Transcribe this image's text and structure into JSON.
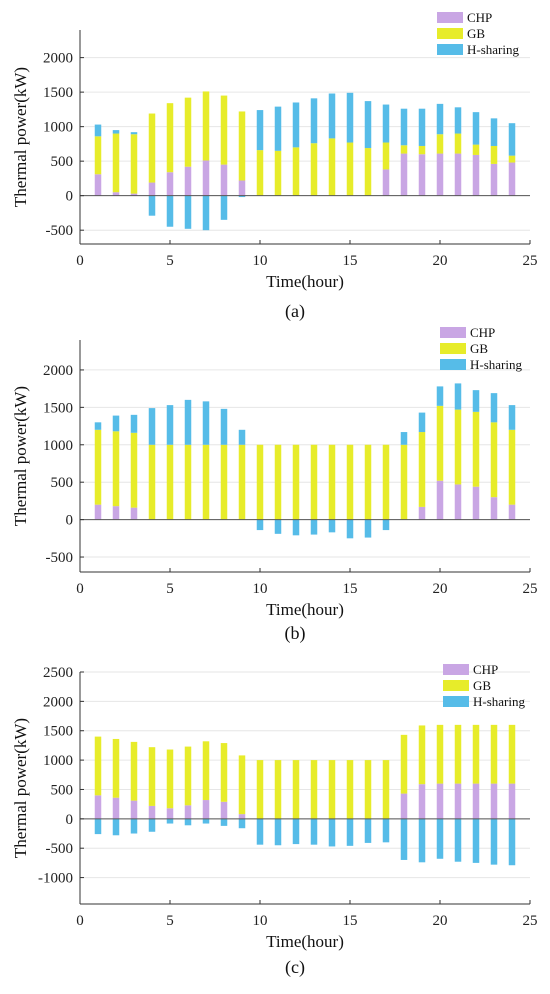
{
  "colors": {
    "CHP": "#C9A6E4",
    "GB": "#E7EC2A",
    "H-sharing": "#56BCE8",
    "grid": "#e6e6e6",
    "axis": "#333333"
  },
  "chart_data": [
    {
      "type": "bar",
      "caption": "(a)",
      "xlabel": "Time(hour)",
      "ylabel": "Thermal power(kW)",
      "xlim": [
        0,
        25
      ],
      "ylim": [
        -700,
        2400
      ],
      "xticks": [
        0,
        5,
        10,
        15,
        20,
        25
      ],
      "yticks": [
        -500,
        0,
        500,
        1000,
        1500,
        2000
      ],
      "grid": true,
      "legend": "top-right",
      "categories": [
        1,
        2,
        3,
        4,
        5,
        6,
        7,
        8,
        9,
        10,
        11,
        12,
        13,
        14,
        15,
        16,
        17,
        18,
        19,
        20,
        21,
        22,
        23,
        24
      ],
      "series": [
        {
          "name": "CHP",
          "values": [
            310,
            50,
            30,
            190,
            340,
            420,
            510,
            450,
            220,
            0,
            0,
            0,
            0,
            0,
            0,
            0,
            380,
            610,
            600,
            610,
            610,
            590,
            460,
            480
          ]
        },
        {
          "name": "GB",
          "values": [
            550,
            850,
            860,
            1000,
            1000,
            1000,
            1000,
            1000,
            1000,
            660,
            650,
            700,
            760,
            830,
            770,
            690,
            390,
            120,
            120,
            280,
            290,
            150,
            260,
            100
          ]
        },
        {
          "name": "H-sharing",
          "values": [
            170,
            50,
            30,
            -290,
            -450,
            -480,
            -500,
            -350,
            -20,
            580,
            640,
            650,
            650,
            650,
            720,
            680,
            550,
            530,
            540,
            440,
            380,
            470,
            400,
            470
          ]
        }
      ]
    },
    {
      "type": "bar",
      "caption": "(b)",
      "xlabel": "Time(hour)",
      "ylabel": "Thermal power(kW)",
      "xlim": [
        0,
        25
      ],
      "ylim": [
        -700,
        2400
      ],
      "xticks": [
        0,
        5,
        10,
        15,
        20,
        25
      ],
      "yticks": [
        -500,
        0,
        500,
        1000,
        1500,
        2000
      ],
      "grid": true,
      "legend": "top-right",
      "categories": [
        1,
        2,
        3,
        4,
        5,
        6,
        7,
        8,
        9,
        10,
        11,
        12,
        13,
        14,
        15,
        16,
        17,
        18,
        19,
        20,
        21,
        22,
        23,
        24
      ],
      "series": [
        {
          "name": "CHP",
          "values": [
            200,
            180,
            160,
            0,
            0,
            0,
            0,
            0,
            0,
            0,
            0,
            0,
            0,
            0,
            0,
            0,
            0,
            0,
            170,
            520,
            470,
            440,
            300,
            200
          ]
        },
        {
          "name": "GB",
          "values": [
            1000,
            1000,
            1000,
            1000,
            1000,
            1000,
            1000,
            1000,
            1000,
            1000,
            1000,
            1000,
            1000,
            1000,
            1000,
            1000,
            1000,
            1000,
            1000,
            1000,
            1000,
            1000,
            1000,
            1000
          ]
        },
        {
          "name": "H-sharing",
          "values": [
            100,
            210,
            240,
            490,
            530,
            600,
            580,
            480,
            200,
            -140,
            -190,
            -210,
            -200,
            -170,
            -250,
            -240,
            -140,
            170,
            260,
            260,
            350,
            290,
            390,
            330
          ]
        }
      ]
    },
    {
      "type": "bar",
      "caption": "(c)",
      "xlabel": "Time(hour)",
      "ylabel": "Thermal power(kW)",
      "xlim": [
        0,
        25
      ],
      "ylim": [
        -1450,
        2500
      ],
      "xticks": [
        0,
        5,
        10,
        15,
        20,
        25
      ],
      "yticks": [
        -1000,
        -500,
        0,
        500,
        1000,
        1500,
        2000,
        2500
      ],
      "grid": true,
      "legend": "top-right",
      "categories": [
        1,
        2,
        3,
        4,
        5,
        6,
        7,
        8,
        9,
        10,
        11,
        12,
        13,
        14,
        15,
        16,
        17,
        18,
        19,
        20,
        21,
        22,
        23,
        24
      ],
      "series": [
        {
          "name": "CHP",
          "values": [
            400,
            360,
            310,
            220,
            180,
            230,
            320,
            290,
            80,
            0,
            0,
            0,
            0,
            0,
            0,
            0,
            0,
            430,
            590,
            600,
            600,
            600,
            600,
            600
          ]
        },
        {
          "name": "GB",
          "values": [
            1000,
            1000,
            1000,
            1000,
            1000,
            1000,
            1000,
            1000,
            1000,
            1000,
            1000,
            1000,
            1000,
            1000,
            1000,
            1000,
            1000,
            1000,
            1000,
            1000,
            1000,
            1000,
            1000,
            1000
          ]
        },
        {
          "name": "H-sharing",
          "values": [
            -260,
            -280,
            -250,
            -220,
            -80,
            -110,
            -80,
            -120,
            -160,
            -440,
            -450,
            -430,
            -440,
            -470,
            -460,
            -410,
            -400,
            -700,
            -740,
            -680,
            -730,
            -750,
            -780,
            -790
          ]
        }
      ]
    }
  ]
}
